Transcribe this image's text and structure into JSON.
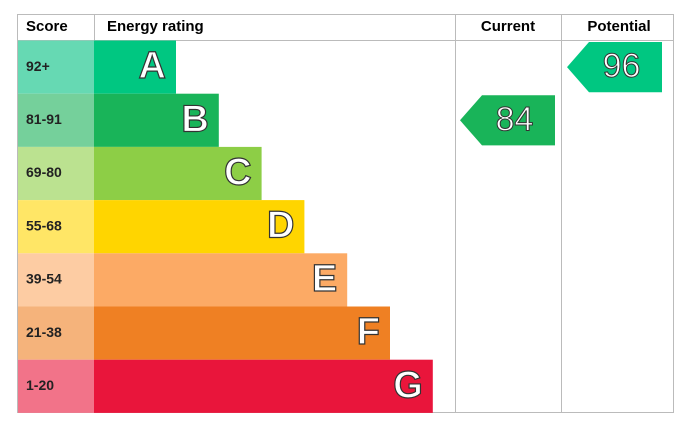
{
  "header": {
    "score": "Score",
    "rating": "Energy rating",
    "current": "Current",
    "potential": "Potential"
  },
  "bands": [
    {
      "score": "92+",
      "letter": "A",
      "color": "#00c781",
      "score_color": "#66d9b3"
    },
    {
      "score": "81-91",
      "letter": "B",
      "color": "#19b459",
      "score_color": "#75d09b"
    },
    {
      "score": "69-80",
      "letter": "C",
      "color": "#8dce46",
      "score_color": "#bbe290"
    },
    {
      "score": "55-68",
      "letter": "D",
      "color": "#ffd500",
      "score_color": "#ffe666"
    },
    {
      "score": "39-54",
      "letter": "E",
      "color": "#fcaa65",
      "score_color": "#fdcca3"
    },
    {
      "score": "21-38",
      "letter": "F",
      "color": "#ef8023",
      "score_color": "#f5b37b"
    },
    {
      "score": "1-20",
      "letter": "G",
      "color": "#e9153b",
      "score_color": "#f27389"
    }
  ],
  "current": "84",
  "potential": "96"
}
